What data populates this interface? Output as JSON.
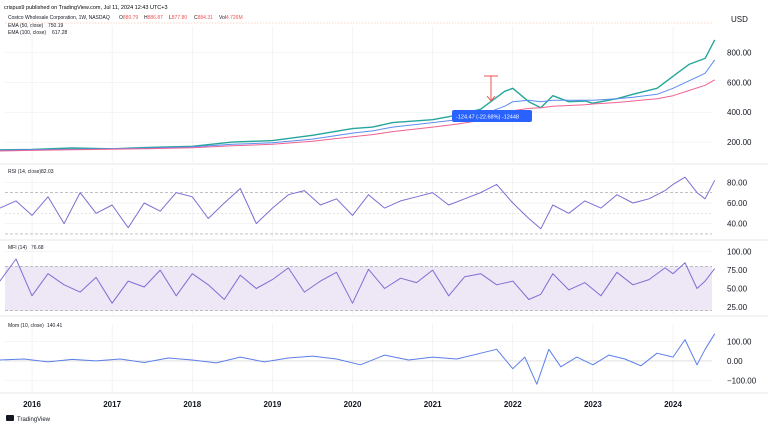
{
  "publisher_line": "crispus9 published on TradingView.com, Jul 11, 2024 12:43 UTC+3",
  "footer_logo": "TradingView",
  "colors": {
    "price_up": "#26a69a",
    "price_down": "#ef5350",
    "ema50": "#5b8def",
    "ema100": "#f06292",
    "osc": "#7e6fd3",
    "band": "#ede7f6",
    "mom": "#5b7fe8",
    "grid": "#e8e8e8",
    "label_blue": "#2962ff"
  },
  "header": {
    "symbol": "Costco Wholesale Corporation, 1W, NASDAQ",
    "ohlc": [
      {
        "label": "O",
        "value": "880.79",
        "color": "#ef5350"
      },
      {
        "label": "H",
        "value": "886.87",
        "color": "#ef5350"
      },
      {
        "label": "L",
        "value": "877.80",
        "color": "#ef5350"
      },
      {
        "label": "C",
        "value": "884.31",
        "color": "#ef5350"
      },
      {
        "label": "Vol",
        "value": "4.726M",
        "color": "#ef5350"
      }
    ],
    "ema50_label": "EMA (50, close)",
    "ema50_value": "750.19",
    "ema100_label": "EMA (100, close)",
    "ema100_value": "617.28"
  },
  "measure_label": "-124.47 (-22.68%) -12448",
  "chart_data": [
    {
      "type": "line",
      "panel": "price",
      "ylabel": "USD",
      "yticks": [
        200,
        400,
        600,
        800
      ],
      "yticks_text": [
        "200.00",
        "400.00",
        "600.00",
        "800.00"
      ],
      "ylim": [
        80,
        950
      ],
      "x": [
        2015.6,
        2016.0,
        2016.5,
        2017.0,
        2017.5,
        2018.0,
        2018.5,
        2019.0,
        2019.5,
        2020.0,
        2020.25,
        2020.5,
        2021.0,
        2021.3,
        2021.6,
        2021.9,
        2022.0,
        2022.2,
        2022.35,
        2022.5,
        2022.7,
        2022.9,
        2023.0,
        2023.3,
        2023.5,
        2023.8,
        2024.0,
        2024.2,
        2024.4,
        2024.52
      ],
      "series": [
        {
          "key": "price",
          "values": [
            148,
            150,
            160,
            155,
            165,
            172,
            200,
            210,
            245,
            290,
            300,
            330,
            350,
            380,
            420,
            540,
            560,
            470,
            430,
            510,
            470,
            475,
            460,
            490,
            520,
            560,
            640,
            720,
            760,
            884
          ]
        },
        {
          "key": "ema50",
          "values": [
            145,
            148,
            152,
            155,
            160,
            168,
            185,
            195,
            220,
            260,
            275,
            300,
            330,
            350,
            380,
            440,
            470,
            480,
            470,
            480,
            480,
            480,
            480,
            490,
            500,
            520,
            560,
            610,
            660,
            750
          ]
        },
        {
          "key": "ema100",
          "values": [
            140,
            144,
            148,
            152,
            156,
            162,
            175,
            185,
            205,
            235,
            250,
            270,
            300,
            320,
            345,
            385,
            410,
            425,
            430,
            440,
            445,
            450,
            455,
            465,
            475,
            490,
            510,
            545,
            580,
            617
          ]
        }
      ]
    },
    {
      "type": "line",
      "panel": "rsi",
      "title": "RSI (14, close)",
      "last_value": "82.03",
      "yticks": [
        40,
        60,
        80
      ],
      "yticks_text": [
        "40.00",
        "60.00",
        "80.00"
      ],
      "ylim": [
        28,
        90
      ],
      "bands": [
        70,
        30
      ],
      "x": [
        2015.6,
        2015.8,
        2016.0,
        2016.2,
        2016.4,
        2016.6,
        2016.8,
        2017.0,
        2017.2,
        2017.4,
        2017.6,
        2017.8,
        2018.0,
        2018.2,
        2018.4,
        2018.6,
        2018.8,
        2019.0,
        2019.2,
        2019.4,
        2019.6,
        2019.8,
        2020.0,
        2020.2,
        2020.4,
        2020.6,
        2020.8,
        2021.0,
        2021.2,
        2021.4,
        2021.6,
        2021.8,
        2022.0,
        2022.2,
        2022.35,
        2022.5,
        2022.7,
        2022.9,
        2023.1,
        2023.3,
        2023.5,
        2023.7,
        2023.9,
        2024.0,
        2024.15,
        2024.3,
        2024.4,
        2024.52
      ],
      "values": [
        55,
        62,
        48,
        66,
        40,
        70,
        50,
        58,
        36,
        60,
        52,
        70,
        66,
        45,
        60,
        74,
        40,
        55,
        68,
        72,
        58,
        64,
        48,
        68,
        55,
        62,
        66,
        70,
        58,
        64,
        70,
        78,
        60,
        45,
        35,
        58,
        50,
        62,
        55,
        68,
        60,
        64,
        72,
        78,
        85,
        70,
        64,
        82
      ]
    },
    {
      "type": "line",
      "panel": "mfi",
      "title": "MFI (14)",
      "last_value": "76.68",
      "yticks": [
        25,
        50,
        75,
        100
      ],
      "yticks_text": [
        "25.00",
        "50.00",
        "75.00",
        "100.00"
      ],
      "ylim": [
        18,
        105
      ],
      "bands": [
        80,
        20
      ],
      "x": [
        2015.6,
        2015.8,
        2016.0,
        2016.2,
        2016.4,
        2016.6,
        2016.8,
        2017.0,
        2017.2,
        2017.4,
        2017.6,
        2017.8,
        2018.0,
        2018.2,
        2018.4,
        2018.6,
        2018.8,
        2019.0,
        2019.2,
        2019.4,
        2019.6,
        2019.8,
        2020.0,
        2020.2,
        2020.4,
        2020.6,
        2020.8,
        2021.0,
        2021.2,
        2021.4,
        2021.6,
        2021.8,
        2022.0,
        2022.2,
        2022.35,
        2022.5,
        2022.7,
        2022.9,
        2023.1,
        2023.3,
        2023.5,
        2023.7,
        2023.9,
        2024.0,
        2024.15,
        2024.3,
        2024.4,
        2024.52
      ],
      "values": [
        60,
        90,
        40,
        70,
        55,
        45,
        65,
        30,
        60,
        52,
        75,
        40,
        70,
        55,
        35,
        68,
        50,
        62,
        78,
        45,
        60,
        72,
        30,
        76,
        50,
        64,
        58,
        75,
        40,
        66,
        70,
        55,
        60,
        35,
        42,
        70,
        48,
        58,
        40,
        72,
        55,
        62,
        78,
        70,
        85,
        50,
        60,
        77
      ]
    },
    {
      "type": "line",
      "panel": "mom",
      "title": "Mom (10, close)",
      "last_value": "140.41",
      "yticks": [
        -100,
        0,
        100
      ],
      "yticks_text": [
        "−100.00",
        "0.00",
        "100.00"
      ],
      "ylim": [
        -150,
        170
      ],
      "x": [
        2015.6,
        2015.9,
        2016.2,
        2016.5,
        2016.8,
        2017.1,
        2017.4,
        2017.7,
        2018.0,
        2018.3,
        2018.6,
        2018.9,
        2019.2,
        2019.5,
        2019.8,
        2020.1,
        2020.4,
        2020.7,
        2021.0,
        2021.3,
        2021.6,
        2021.8,
        2022.0,
        2022.15,
        2022.3,
        2022.45,
        2022.6,
        2022.8,
        2023.0,
        2023.2,
        2023.4,
        2023.6,
        2023.8,
        2024.0,
        2024.15,
        2024.3,
        2024.4,
        2024.52
      ],
      "values": [
        5,
        10,
        -5,
        8,
        0,
        10,
        -8,
        15,
        5,
        -10,
        20,
        -5,
        15,
        25,
        10,
        -20,
        30,
        5,
        20,
        10,
        40,
        60,
        -40,
        20,
        -120,
        60,
        -30,
        20,
        -20,
        30,
        10,
        -25,
        40,
        20,
        110,
        -20,
        60,
        140
      ]
    }
  ],
  "x_axis": {
    "ticks": [
      2016,
      2017,
      2018,
      2019,
      2020,
      2021,
      2022,
      2023,
      2024
    ],
    "labels": [
      "2016",
      "2017",
      "2018",
      "2019",
      "2020",
      "2021",
      "2022",
      "2023",
      "2024"
    ]
  }
}
